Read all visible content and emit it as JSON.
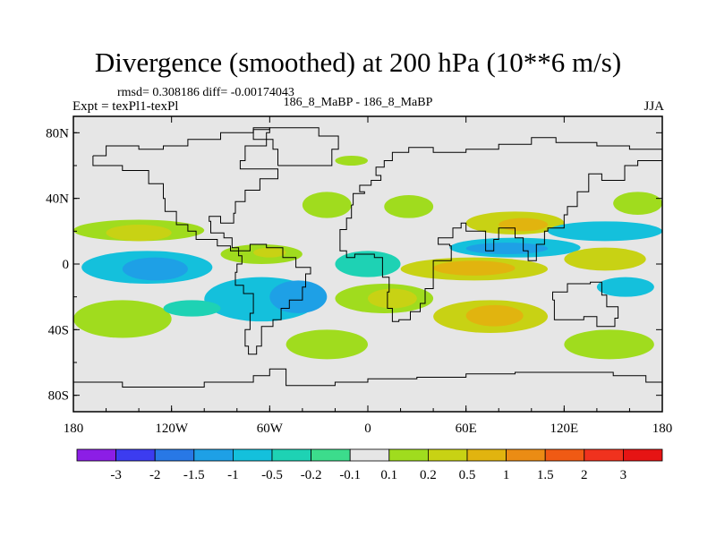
{
  "header": {
    "title": "Divergence (smoothed) at 200 hPa (10**6 m/s)",
    "stats": "rmsd= 0.308186 diff= -0.00174043",
    "expt": "Expt = texPl1-texPl",
    "case": "186_8_MaBP - 186_8_MaBP",
    "season": "JJA"
  },
  "colors": {
    "background": "#e6e6e6",
    "frame": "#000000",
    "coast": "#000000"
  },
  "chart_data": {
    "type": "heatmap",
    "title": "Divergence (smoothed) at 200 hPa (10**6 m/s)",
    "xlabel": "",
    "ylabel": "",
    "xlim": [
      -180,
      180
    ],
    "ylim": [
      -90,
      90
    ],
    "x_ticks": [
      {
        "value": -180,
        "label": "180"
      },
      {
        "value": -120,
        "label": "120W"
      },
      {
        "value": -60,
        "label": "60W"
      },
      {
        "value": 0,
        "label": "0"
      },
      {
        "value": 60,
        "label": "60E"
      },
      {
        "value": 120,
        "label": "120E"
      },
      {
        "value": 180,
        "label": "180"
      }
    ],
    "y_ticks": [
      {
        "value": 80,
        "label": "80N"
      },
      {
        "value": 40,
        "label": "40N"
      },
      {
        "value": 0,
        "label": "0"
      },
      {
        "value": -40,
        "label": "40S"
      },
      {
        "value": -80,
        "label": "80S"
      }
    ],
    "colorbar": {
      "levels": [
        "-3",
        "-2",
        "-1.5",
        "-1",
        "-0.5",
        "-0.2",
        "-0.1",
        "0.1",
        "0.2",
        "0.5",
        "1",
        "1.5",
        "2",
        "3"
      ],
      "colors": [
        "#8c1ee6",
        "#3c3cf0",
        "#2878e6",
        "#1ea0e6",
        "#14c0dc",
        "#1ed2b4",
        "#3cdc8c",
        "#e6e6e6",
        "#a0dc1e",
        "#c8d214",
        "#e1b40f",
        "#eb8c14",
        "#f05a14",
        "#f0321e",
        "#e61414"
      ]
    },
    "regions": [
      {
        "lon": [
          -180,
          -100
        ],
        "lat": [
          14,
          27
        ],
        "value": 0.2
      },
      {
        "lon": [
          -160,
          -120
        ],
        "lat": [
          14,
          24
        ],
        "value": 0.5
      },
      {
        "lon": [
          -175,
          -95
        ],
        "lat": [
          -12,
          8
        ],
        "value": -0.5
      },
      {
        "lon": [
          -150,
          -110
        ],
        "lat": [
          -10,
          4
        ],
        "value": -1
      },
      {
        "lon": [
          -90,
          -40
        ],
        "lat": [
          0,
          12
        ],
        "value": 0.2
      },
      {
        "lon": [
          -70,
          -50
        ],
        "lat": [
          4,
          10
        ],
        "value": 0.5
      },
      {
        "lon": [
          -100,
          -30
        ],
        "lat": [
          -35,
          -8
        ],
        "value": -0.5
      },
      {
        "lon": [
          -60,
          -25
        ],
        "lat": [
          -30,
          -10
        ],
        "value": -1
      },
      {
        "lon": [
          -180,
          -120
        ],
        "lat": [
          -45,
          -22
        ],
        "value": 0.2
      },
      {
        "lon": [
          -125,
          -90
        ],
        "lat": [
          -32,
          -22
        ],
        "value": -0.2
      },
      {
        "lon": [
          -50,
          0
        ],
        "lat": [
          -58,
          -40
        ],
        "value": 0.2
      },
      {
        "lon": [
          -20,
          40
        ],
        "lat": [
          -30,
          -12
        ],
        "value": 0.2
      },
      {
        "lon": [
          0,
          30
        ],
        "lat": [
          -27,
          -15
        ],
        "value": 0.5
      },
      {
        "lon": [
          -20,
          20
        ],
        "lat": [
          -8,
          8
        ],
        "value": -0.2
      },
      {
        "lon": [
          20,
          110
        ],
        "lat": [
          -10,
          4
        ],
        "value": 0.5
      },
      {
        "lon": [
          40,
          90
        ],
        "lat": [
          -7,
          2
        ],
        "value": 1
      },
      {
        "lon": [
          50,
          130
        ],
        "lat": [
          4,
          16
        ],
        "value": -0.5
      },
      {
        "lon": [
          60,
          110
        ],
        "lat": [
          6,
          13
        ],
        "value": -1
      },
      {
        "lon": [
          60,
          120
        ],
        "lat": [
          18,
          32
        ],
        "value": 0.5
      },
      {
        "lon": [
          80,
          110
        ],
        "lat": [
          20,
          28
        ],
        "value": 1
      },
      {
        "lon": [
          110,
          180
        ],
        "lat": [
          14,
          26
        ],
        "value": -0.5
      },
      {
        "lon": [
          120,
          170
        ],
        "lat": [
          -4,
          10
        ],
        "value": 0.5
      },
      {
        "lon": [
          40,
          110
        ],
        "lat": [
          -42,
          -22
        ],
        "value": 0.5
      },
      {
        "lon": [
          60,
          95
        ],
        "lat": [
          -38,
          -25
        ],
        "value": 1
      },
      {
        "lon": [
          120,
          175
        ],
        "lat": [
          -58,
          -40
        ],
        "value": 0.2
      },
      {
        "lon": [
          -40,
          -10
        ],
        "lat": [
          28,
          44
        ],
        "value": 0.2
      },
      {
        "lon": [
          10,
          40
        ],
        "lat": [
          28,
          42
        ],
        "value": 0.2
      },
      {
        "lon": [
          -20,
          0
        ],
        "lat": [
          60,
          66
        ],
        "value": 0.2
      },
      {
        "lon": [
          140,
          175
        ],
        "lat": [
          -20,
          -8
        ],
        "value": -0.5
      },
      {
        "lon": [
          150,
          180
        ],
        "lat": [
          30,
          44
        ],
        "value": 0.2
      }
    ]
  }
}
